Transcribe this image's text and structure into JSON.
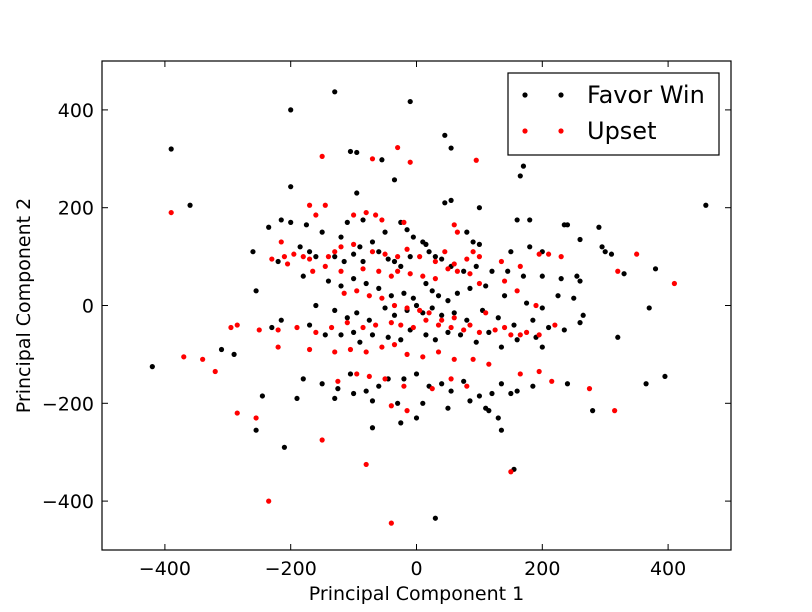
{
  "chart_data": {
    "type": "scatter",
    "xlabel": "Principal Component 1",
    "ylabel": "Principal Component 2",
    "xlim": [
      -500,
      500
    ],
    "ylim": [
      -500,
      500
    ],
    "x_ticks": [
      -400,
      -200,
      0,
      200,
      400
    ],
    "y_ticks": [
      -400,
      -200,
      0,
      200,
      400
    ],
    "x_tick_labels": [
      "−400",
      "−200",
      "0",
      "200",
      "400"
    ],
    "y_tick_labels": [
      "−400",
      "−200",
      "0",
      "200",
      "400"
    ],
    "grid": false,
    "legend_position": "top-right",
    "series": [
      {
        "name": "Favor Win",
        "color": "#000000",
        "points": [
          [
            -130,
            437
          ],
          [
            -10,
            417
          ],
          [
            -200,
            400
          ],
          [
            45,
            348
          ],
          [
            55,
            322
          ],
          [
            -105,
            315
          ],
          [
            -95,
            313
          ],
          [
            -390,
            320
          ],
          [
            -55,
            298
          ],
          [
            170,
            285
          ],
          [
            165,
            265
          ],
          [
            -35,
            257
          ],
          [
            -200,
            243
          ],
          [
            -95,
            230
          ],
          [
            100,
            200
          ],
          [
            460,
            205
          ],
          [
            -360,
            205
          ],
          [
            -215,
            175
          ],
          [
            -235,
            160
          ],
          [
            -200,
            170
          ],
          [
            -175,
            165
          ],
          [
            -110,
            170
          ],
          [
            -85,
            175
          ],
          [
            -25,
            170
          ],
          [
            -15,
            155
          ],
          [
            45,
            210
          ],
          [
            55,
            215
          ],
          [
            160,
            175
          ],
          [
            180,
            175
          ],
          [
            235,
            165
          ],
          [
            240,
            165
          ],
          [
            290,
            160
          ],
          [
            -150,
            150
          ],
          [
            -120,
            140
          ],
          [
            -90,
            120
          ],
          [
            -70,
            130
          ],
          [
            -50,
            150
          ],
          [
            -5,
            140
          ],
          [
            10,
            130
          ],
          [
            15,
            125
          ],
          [
            80,
            150
          ],
          [
            90,
            130
          ],
          [
            100,
            125
          ],
          [
            150,
            110
          ],
          [
            180,
            120
          ],
          [
            200,
            110
          ],
          [
            260,
            135
          ],
          [
            295,
            120
          ],
          [
            300,
            110
          ],
          [
            310,
            105
          ],
          [
            380,
            75
          ],
          [
            -260,
            110
          ],
          [
            -220,
            90
          ],
          [
            -185,
            120
          ],
          [
            -170,
            110
          ],
          [
            -160,
            100
          ],
          [
            -130,
            100
          ],
          [
            -115,
            90
          ],
          [
            -100,
            105
          ],
          [
            -85,
            90
          ],
          [
            -60,
            110
          ],
          [
            -45,
            95
          ],
          [
            -35,
            90
          ],
          [
            -25,
            80
          ],
          [
            -10,
            100
          ],
          [
            20,
            110
          ],
          [
            30,
            100
          ],
          [
            40,
            95
          ],
          [
            55,
            80
          ],
          [
            75,
            70
          ],
          [
            95,
            80
          ],
          [
            120,
            70
          ],
          [
            145,
            70
          ],
          [
            170,
            60
          ],
          [
            200,
            60
          ],
          [
            230,
            55
          ],
          [
            255,
            60
          ],
          [
            260,
            50
          ],
          [
            330,
            65
          ],
          [
            -255,
            30
          ],
          [
            -180,
            60
          ],
          [
            -140,
            50
          ],
          [
            -120,
            40
          ],
          [
            -100,
            55
          ],
          [
            -80,
            45
          ],
          [
            -60,
            35
          ],
          [
            -40,
            20
          ],
          [
            -20,
            25
          ],
          [
            -5,
            15
          ],
          [
            15,
            45
          ],
          [
            25,
            30
          ],
          [
            35,
            20
          ],
          [
            50,
            10
          ],
          [
            65,
            25
          ],
          [
            85,
            35
          ],
          [
            110,
            40
          ],
          [
            140,
            20
          ],
          [
            175,
            5
          ],
          [
            200,
            -5
          ],
          [
            225,
            20
          ],
          [
            250,
            15
          ],
          [
            265,
            -20
          ],
          [
            370,
            -5
          ],
          [
            -160,
            0
          ],
          [
            -130,
            -10
          ],
          [
            -110,
            -25
          ],
          [
            -95,
            -15
          ],
          [
            -75,
            -30
          ],
          [
            -50,
            -5
          ],
          [
            -35,
            -20
          ],
          [
            -15,
            -10
          ],
          [
            0,
            0
          ],
          [
            10,
            -15
          ],
          [
            25,
            -5
          ],
          [
            40,
            -20
          ],
          [
            60,
            -15
          ],
          [
            80,
            -30
          ],
          [
            105,
            -10
          ],
          [
            130,
            -25
          ],
          [
            155,
            -40
          ],
          [
            185,
            -30
          ],
          [
            210,
            -45
          ],
          [
            235,
            -50
          ],
          [
            260,
            -35
          ],
          [
            320,
            -65
          ],
          [
            -290,
            -100
          ],
          [
            -310,
            -90
          ],
          [
            -230,
            -45
          ],
          [
            -215,
            -30
          ],
          [
            -170,
            -40
          ],
          [
            -145,
            -60
          ],
          [
            -120,
            -60
          ],
          [
            -100,
            -55
          ],
          [
            -90,
            -75
          ],
          [
            -70,
            -60
          ],
          [
            -45,
            -65
          ],
          [
            -25,
            -70
          ],
          [
            -10,
            -50
          ],
          [
            15,
            -60
          ],
          [
            30,
            -70
          ],
          [
            50,
            -55
          ],
          [
            70,
            -60
          ],
          [
            95,
            -75
          ],
          [
            115,
            -55
          ],
          [
            135,
            -85
          ],
          [
            160,
            -70
          ],
          [
            190,
            -65
          ],
          [
            200,
            -85
          ],
          [
            -420,
            -125
          ],
          [
            -180,
            -150
          ],
          [
            -150,
            -160
          ],
          [
            -125,
            -170
          ],
          [
            -105,
            -140
          ],
          [
            -80,
            -175
          ],
          [
            -60,
            -165
          ],
          [
            -45,
            -150
          ],
          [
            -20,
            -150
          ],
          [
            0,
            -140
          ],
          [
            20,
            -165
          ],
          [
            40,
            -160
          ],
          [
            55,
            -175
          ],
          [
            75,
            -155
          ],
          [
            100,
            -185
          ],
          [
            120,
            -180
          ],
          [
            135,
            -160
          ],
          [
            150,
            -180
          ],
          [
            160,
            -175
          ],
          [
            185,
            -165
          ],
          [
            -245,
            -185
          ],
          [
            -190,
            -190
          ],
          [
            -130,
            -190
          ],
          [
            -100,
            -180
          ],
          [
            -70,
            -195
          ],
          [
            -30,
            -200
          ],
          [
            0,
            -230
          ],
          [
            10,
            -200
          ],
          [
            50,
            -210
          ],
          [
            85,
            -195
          ],
          [
            110,
            -210
          ],
          [
            115,
            -215
          ],
          [
            130,
            -230
          ],
          [
            -210,
            -290
          ],
          [
            -255,
            -255
          ],
          [
            -70,
            -250
          ],
          [
            -25,
            -240
          ],
          [
            135,
            -255
          ],
          [
            155,
            -335
          ],
          [
            30,
            -435
          ],
          [
            365,
            -160
          ],
          [
            395,
            -145
          ],
          [
            280,
            -215
          ],
          [
            240,
            -160
          ]
        ]
      },
      {
        "name": "Upset",
        "color": "#ff0000",
        "points": [
          [
            -150,
            305
          ],
          [
            -70,
            300
          ],
          [
            -30,
            323
          ],
          [
            -10,
            293
          ],
          [
            95,
            297
          ],
          [
            -390,
            190
          ],
          [
            -170,
            205
          ],
          [
            -145,
            205
          ],
          [
            -160,
            185
          ],
          [
            -100,
            185
          ],
          [
            -80,
            190
          ],
          [
            -65,
            185
          ],
          [
            -55,
            175
          ],
          [
            -20,
            170
          ],
          [
            60,
            165
          ],
          [
            65,
            150
          ],
          [
            -215,
            130
          ],
          [
            -120,
            120
          ],
          [
            -230,
            95
          ],
          [
            -210,
            100
          ],
          [
            -195,
            105
          ],
          [
            -180,
            100
          ],
          [
            -170,
            95
          ],
          [
            -140,
            100
          ],
          [
            -130,
            110
          ],
          [
            -100,
            125
          ],
          [
            -70,
            110
          ],
          [
            -50,
            105
          ],
          [
            -30,
            100
          ],
          [
            -15,
            115
          ],
          [
            5,
            100
          ],
          [
            30,
            90
          ],
          [
            45,
            110
          ],
          [
            60,
            85
          ],
          [
            80,
            95
          ],
          [
            90,
            110
          ],
          [
            100,
            100
          ],
          [
            135,
            90
          ],
          [
            165,
            80
          ],
          [
            195,
            105
          ],
          [
            210,
            105
          ],
          [
            230,
            100
          ],
          [
            350,
            105
          ],
          [
            320,
            70
          ],
          [
            410,
            45
          ],
          [
            -205,
            85
          ],
          [
            -165,
            70
          ],
          [
            -145,
            80
          ],
          [
            -120,
            70
          ],
          [
            -85,
            75
          ],
          [
            -60,
            70
          ],
          [
            -40,
            60
          ],
          [
            -30,
            70
          ],
          [
            -10,
            65
          ],
          [
            10,
            60
          ],
          [
            30,
            55
          ],
          [
            50,
            75
          ],
          [
            65,
            70
          ],
          [
            85,
            65
          ],
          [
            100,
            45
          ],
          [
            140,
            50
          ],
          [
            160,
            30
          ],
          [
            190,
            0
          ],
          [
            -115,
            25
          ],
          [
            -95,
            30
          ],
          [
            -75,
            20
          ],
          [
            -55,
            15
          ],
          [
            -35,
            0
          ],
          [
            -15,
            -5
          ],
          [
            5,
            -10
          ],
          [
            20,
            -15
          ],
          [
            40,
            -30
          ],
          [
            60,
            -25
          ],
          [
            85,
            -40
          ],
          [
            110,
            -15
          ],
          [
            140,
            -45
          ],
          [
            165,
            -60
          ],
          [
            195,
            -60
          ],
          [
            220,
            -40
          ],
          [
            -295,
            -45
          ],
          [
            -285,
            -40
          ],
          [
            -250,
            -50
          ],
          [
            -220,
            -50
          ],
          [
            -190,
            -45
          ],
          [
            -160,
            -55
          ],
          [
            -135,
            -45
          ],
          [
            -110,
            -35
          ],
          [
            -85,
            -45
          ],
          [
            -65,
            -40
          ],
          [
            -40,
            -35
          ],
          [
            -25,
            -40
          ],
          [
            -5,
            -45
          ],
          [
            15,
            -30
          ],
          [
            35,
            -40
          ],
          [
            55,
            -45
          ],
          [
            75,
            -50
          ],
          [
            100,
            -55
          ],
          [
            125,
            -50
          ],
          [
            150,
            -60
          ],
          [
            175,
            -55
          ],
          [
            -220,
            -85
          ],
          [
            -170,
            -90
          ],
          [
            -130,
            -95
          ],
          [
            -105,
            -90
          ],
          [
            -80,
            -95
          ],
          [
            -55,
            -85
          ],
          [
            -35,
            -80
          ],
          [
            -15,
            -100
          ],
          [
            10,
            -105
          ],
          [
            35,
            -95
          ],
          [
            60,
            -110
          ],
          [
            90,
            -110
          ],
          [
            115,
            -120
          ],
          [
            165,
            -140
          ],
          [
            195,
            -135
          ],
          [
            215,
            -155
          ],
          [
            -370,
            -105
          ],
          [
            -340,
            -110
          ],
          [
            -320,
            -135
          ],
          [
            -125,
            -155
          ],
          [
            -95,
            -140
          ],
          [
            -75,
            -145
          ],
          [
            -50,
            -150
          ],
          [
            -20,
            -165
          ],
          [
            25,
            -170
          ],
          [
            55,
            -150
          ],
          [
            80,
            -165
          ],
          [
            -285,
            -220
          ],
          [
            -255,
            -230
          ],
          [
            -40,
            -205
          ],
          [
            -15,
            -215
          ],
          [
            -150,
            -275
          ],
          [
            -80,
            -325
          ],
          [
            -235,
            -400
          ],
          [
            -40,
            -445
          ],
          [
            150,
            -340
          ],
          [
            275,
            -170
          ],
          [
            315,
            -215
          ]
        ]
      }
    ]
  }
}
